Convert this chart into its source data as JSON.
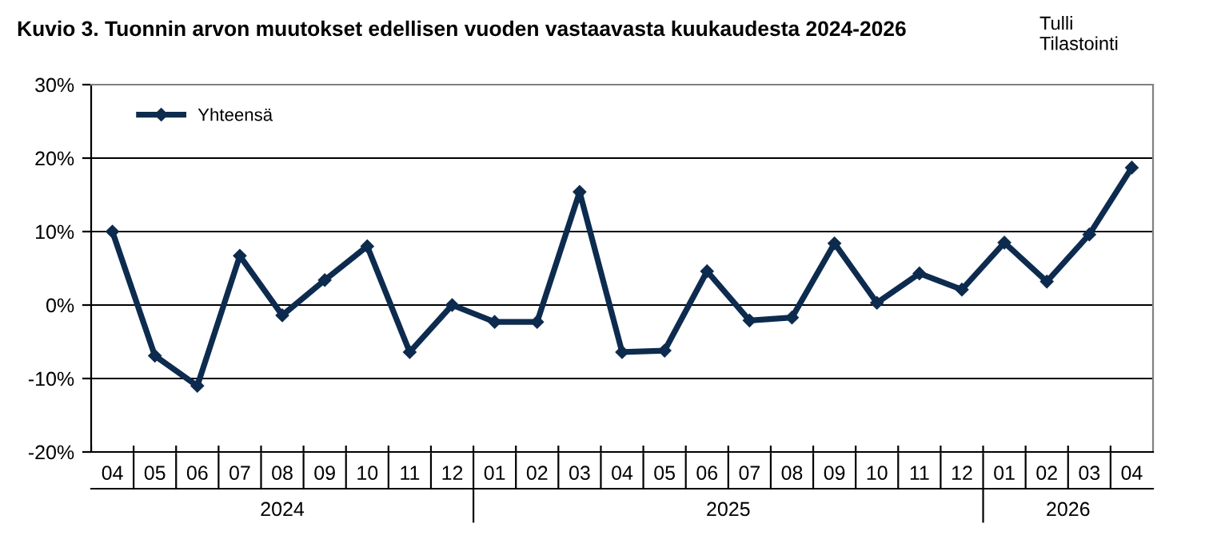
{
  "chart_data": {
    "type": "line",
    "title": "Kuvio 3. Tuonnin arvon muutokset edellisen vuoden vastaavasta kuukaudesta 2024-2026",
    "categories": [
      "04",
      "05",
      "06",
      "07",
      "08",
      "09",
      "10",
      "11",
      "12",
      "01",
      "02",
      "03",
      "04",
      "05",
      "06",
      "07",
      "08",
      "09",
      "10",
      "11",
      "12",
      "01",
      "02",
      "03",
      "04"
    ],
    "series": [
      {
        "name": "Yhteensä",
        "color": "#0d2b4e",
        "values": [
          10.0,
          -6.9,
          -11.0,
          6.7,
          -1.4,
          3.4,
          8.0,
          -6.4,
          0.0,
          -2.3,
          -2.3,
          15.4,
          -6.4,
          -6.2,
          4.6,
          -2.1,
          -1.7,
          8.4,
          0.3,
          4.3,
          2.1,
          8.5,
          3.2,
          9.6,
          18.7
        ]
      }
    ],
    "ylim": [
      -20,
      30
    ],
    "yticks": [
      {
        "value": -20,
        "label": "-20%"
      },
      {
        "value": -10,
        "label": "-10%"
      },
      {
        "value": 0,
        "label": "0%"
      },
      {
        "value": 10,
        "label": "10%"
      },
      {
        "value": 20,
        "label": "20%"
      },
      {
        "value": 30,
        "label": "30%"
      }
    ],
    "grid": "y",
    "legend": "top left",
    "marker": "diamond",
    "line_style": "solid",
    "annotations": [
      "2024",
      "2025",
      "2026",
      "Tulli\nTilastointi"
    ]
  }
}
